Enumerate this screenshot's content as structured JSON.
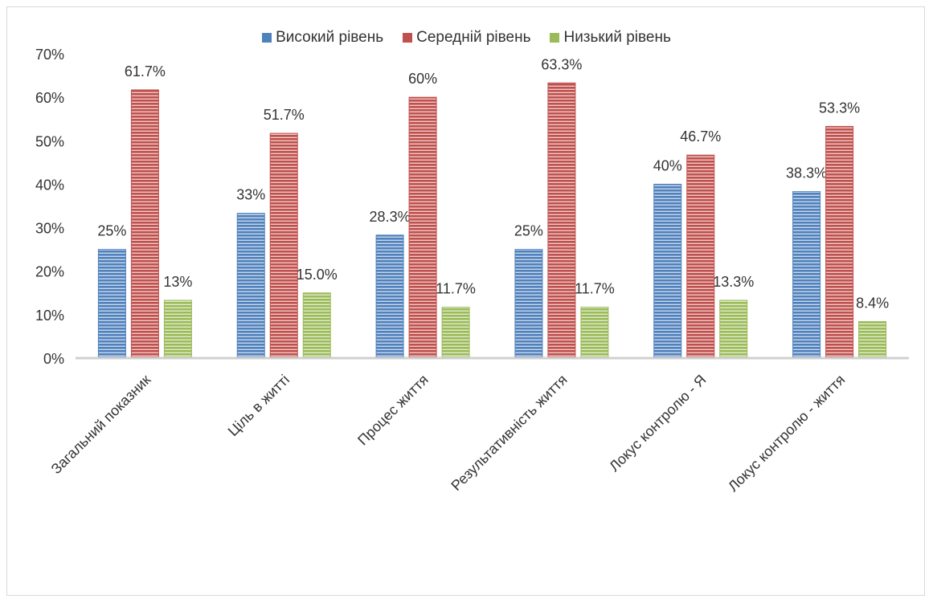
{
  "chart_data": {
    "type": "bar",
    "categories": [
      "Загальний показник",
      "Ціль в житті",
      "Процес життя",
      "Результативність життя",
      "Локус контролю - Я",
      "Локус контролю - життя"
    ],
    "series": [
      {
        "name": "Високий рівень",
        "color": "#4f81bd",
        "values": [
          25,
          33.3,
          28.3,
          25,
          40,
          38.3
        ],
        "labels": [
          "25%",
          "33%",
          "28.3%",
          "25%",
          "40%",
          "38.3%"
        ]
      },
      {
        "name": "Середній рівень",
        "color": "#c0504d",
        "values": [
          61.7,
          51.7,
          60,
          63.3,
          46.7,
          53.3
        ],
        "labels": [
          "61.7%",
          "51.7%",
          "60%",
          "63.3%",
          "46.7%",
          "53.3%"
        ]
      },
      {
        "name": "Низький рівень",
        "color": "#9bbb59",
        "values": [
          13.3,
          15.0,
          11.7,
          11.7,
          13.3,
          8.4
        ],
        "labels": [
          "13%",
          "15.0%",
          "11.7%",
          "11.7%",
          "13.3%",
          "8.4%"
        ]
      }
    ],
    "yticks": [
      "0%",
      "10%",
      "20%",
      "30%",
      "40%",
      "50%",
      "60%",
      "70%"
    ],
    "ylim": [
      0,
      70
    ],
    "grid": false,
    "legend_position": "top"
  }
}
